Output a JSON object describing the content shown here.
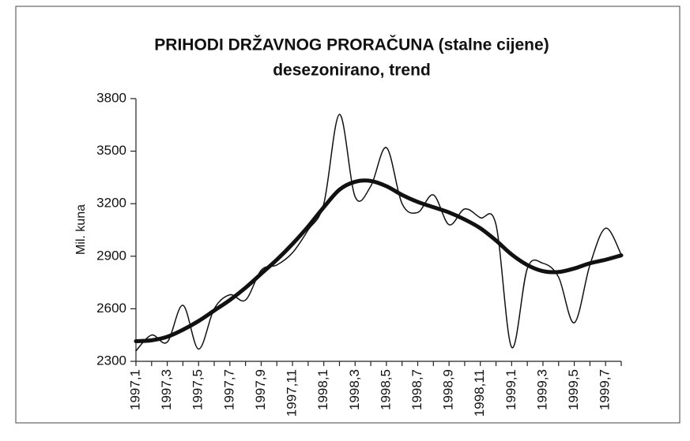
{
  "chart_data": {
    "type": "line",
    "title": "PRIHODI DRŽAVNOG PRORAČUNA  (stalne cijene)",
    "subtitle": "desezonirano, trend",
    "y_label": "Mil. kuna",
    "categories": [
      "1997,1",
      null,
      "1997,3",
      null,
      "1997,5",
      null,
      "1997,7",
      null,
      "1997,9",
      null,
      "1997,11",
      null,
      "1998,1",
      null,
      "1998,3",
      null,
      "1998,5",
      null,
      "1998,7",
      null,
      "1998,9",
      null,
      "1998,11",
      null,
      "1999,1",
      null,
      "1999,3",
      null,
      "1999,5",
      null,
      "1999,7",
      null
    ],
    "series": [
      {
        "color": "#111111",
        "width": 1.5,
        "values": [
          2360,
          2450,
          2410,
          2620,
          2370,
          2600,
          2680,
          2650,
          2820,
          2850,
          2920,
          3050,
          3200,
          3710,
          3240,
          3300,
          3520,
          3200,
          3150,
          3250,
          3080,
          3170,
          3120,
          3080,
          2380,
          2830,
          2860,
          2780,
          2520,
          2850,
          3060,
          2910
        ]
      },
      {
        "color": "#111111",
        "width": 5,
        "values": [
          2415,
          2420,
          2440,
          2480,
          2530,
          2590,
          2650,
          2720,
          2800,
          2880,
          2970,
          3070,
          3180,
          3280,
          3325,
          3330,
          3300,
          3250,
          3210,
          3180,
          3150,
          3110,
          3060,
          2990,
          2910,
          2850,
          2815,
          2810,
          2830,
          2860,
          2880,
          2905
        ]
      }
    ],
    "ylim": [
      2300,
      3800
    ],
    "yticks": [
      2300,
      2600,
      2900,
      3200,
      3500,
      3800
    ],
    "grid": false
  }
}
